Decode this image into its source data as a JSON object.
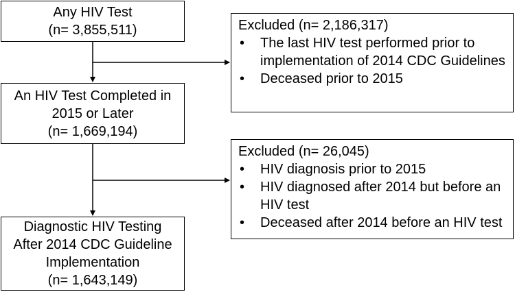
{
  "boxes": {
    "any_test": {
      "lines": [
        "Any HIV Test",
        "(n= 3,855,511)"
      ]
    },
    "completed_2015": {
      "lines": [
        "An HIV Test Completed in",
        "2015 or Later",
        "(n= 1,669,194)"
      ]
    },
    "diagnostic": {
      "lines": [
        "Diagnostic HIV Testing",
        "After 2014 CDC Guideline",
        "Implementation",
        "(n= 1,643,149)"
      ]
    }
  },
  "exclusions": {
    "first": {
      "title": "Excluded (n= 2,186,317)",
      "items": [
        "The last HIV test performed prior to implementation of 2014 CDC Guidelines",
        "Deceased prior to 2015"
      ]
    },
    "second": {
      "title": "Excluded (n= 26,045)",
      "items": [
        "HIV diagnosis prior to 2015",
        "HIV diagnosed after 2014 but before an HIV test",
        "Deceased after 2014 before an HIV test"
      ]
    }
  }
}
